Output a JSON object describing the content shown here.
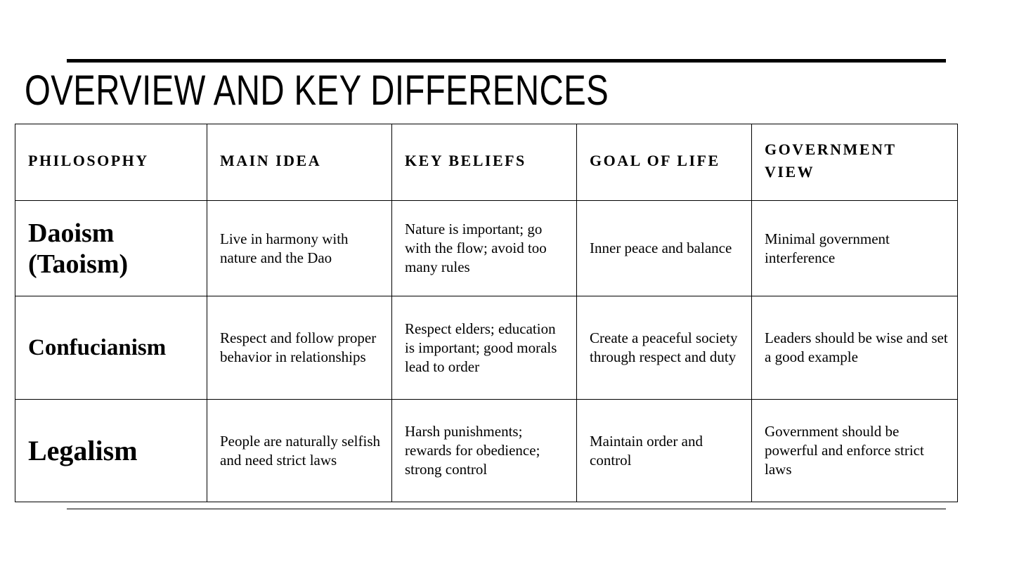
{
  "title": "OVERVIEW AND KEY DIFFERENCES",
  "table": {
    "headers": [
      "PHILOSOPHY",
      "MAIN IDEA",
      "KEY BELIEFS",
      "GOAL OF LIFE",
      "GOVERNMENT VIEW"
    ],
    "rows": [
      {
        "philosophy": "Daoism (Taoism)",
        "main_idea": "Live in harmony with nature and the Dao",
        "key_beliefs": "Nature is important; go with the flow; avoid too many rules",
        "goal_of_life": "Inner peace and balance",
        "government_view": "Minimal government interference"
      },
      {
        "philosophy": "Confucianism",
        "main_idea": "Respect and follow proper behavior in relationships",
        "key_beliefs": "Respect elders; education is important; good morals lead to order",
        "goal_of_life": "Create a peaceful society through respect and duty",
        "government_view": "Leaders should be wise and set a good example"
      },
      {
        "philosophy": "Legalism",
        "main_idea": "People are naturally selfish and need strict laws",
        "key_beliefs": "Harsh punishments; rewards for obedience; strong control",
        "goal_of_life": "Maintain order and control",
        "government_view": "Government should be powerful and enforce strict laws"
      }
    ]
  }
}
